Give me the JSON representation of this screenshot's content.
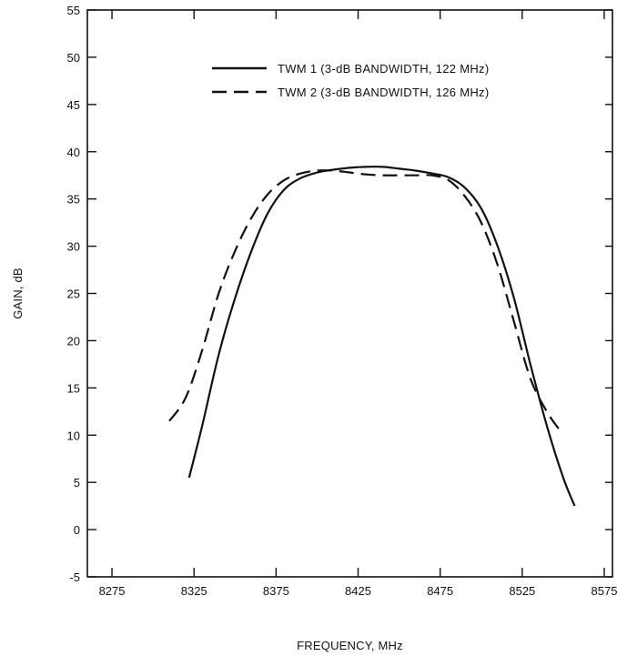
{
  "chart_data": {
    "type": "line",
    "xlabel": "FREQUENCY, MHz",
    "ylabel": "GAIN, dB",
    "xlim": [
      8260,
      8580
    ],
    "ylim": [
      -5,
      55
    ],
    "xticks": [
      8275,
      8325,
      8375,
      8425,
      8475,
      8525,
      8575
    ],
    "yticks": [
      -5,
      0,
      5,
      10,
      15,
      20,
      25,
      30,
      35,
      40,
      45,
      50,
      55
    ],
    "grid": false,
    "legend_position": "top-right",
    "series": [
      {
        "name": "TWM 1 (3-dB BANDWIDTH, 122 MHz)",
        "style": "solid",
        "points": [
          [
            8322,
            5.5
          ],
          [
            8330,
            11
          ],
          [
            8340,
            18.5
          ],
          [
            8350,
            24.5
          ],
          [
            8360,
            29.5
          ],
          [
            8370,
            33.5
          ],
          [
            8380,
            36
          ],
          [
            8390,
            37.2
          ],
          [
            8400,
            37.8
          ],
          [
            8410,
            38.1
          ],
          [
            8420,
            38.3
          ],
          [
            8430,
            38.4
          ],
          [
            8440,
            38.4
          ],
          [
            8450,
            38.2
          ],
          [
            8460,
            38.0
          ],
          [
            8470,
            37.7
          ],
          [
            8480,
            37.3
          ],
          [
            8490,
            36.2
          ],
          [
            8500,
            34
          ],
          [
            8510,
            30
          ],
          [
            8520,
            24.5
          ],
          [
            8530,
            17.5
          ],
          [
            8540,
            11
          ],
          [
            8550,
            5.5
          ],
          [
            8557,
            2.5
          ]
        ]
      },
      {
        "name": "TWM 2 (3-dB BANDWIDTH, 126 MHz)",
        "style": "dashed",
        "points": [
          [
            8310,
            11.5
          ],
          [
            8320,
            14
          ],
          [
            8330,
            19
          ],
          [
            8340,
            25
          ],
          [
            8350,
            29.5
          ],
          [
            8360,
            33
          ],
          [
            8370,
            35.5
          ],
          [
            8380,
            37
          ],
          [
            8390,
            37.7
          ],
          [
            8400,
            38
          ],
          [
            8410,
            38
          ],
          [
            8420,
            37.8
          ],
          [
            8430,
            37.6
          ],
          [
            8440,
            37.5
          ],
          [
            8450,
            37.5
          ],
          [
            8460,
            37.5
          ],
          [
            8470,
            37.5
          ],
          [
            8480,
            37
          ],
          [
            8490,
            35.3
          ],
          [
            8500,
            32.5
          ],
          [
            8510,
            28
          ],
          [
            8520,
            22
          ],
          [
            8530,
            16
          ],
          [
            8540,
            12.5
          ],
          [
            8548,
            10.5
          ]
        ]
      }
    ]
  }
}
